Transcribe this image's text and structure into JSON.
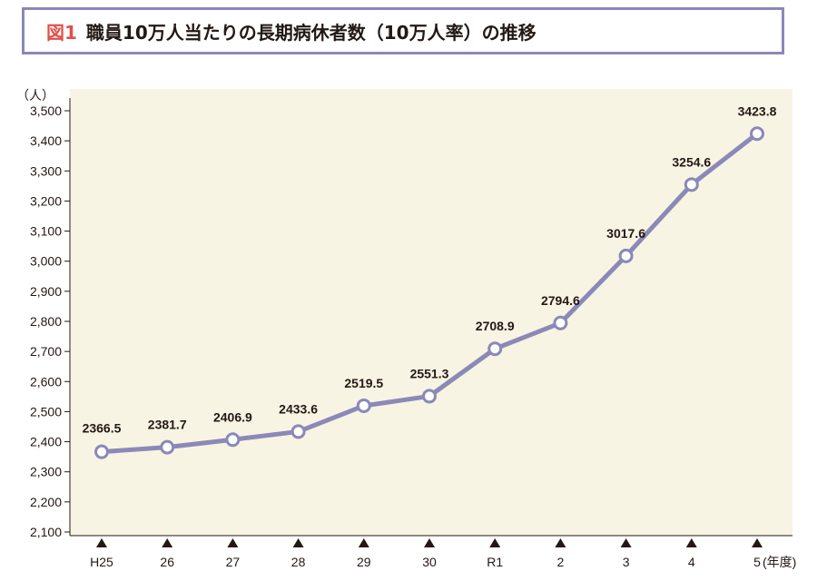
{
  "header": {
    "figure_number": "図1",
    "title": "職員10万人当たりの長期病休者数（10万人率）の推移"
  },
  "chart_data": {
    "type": "line",
    "title": "職員10万人当たりの長期病休者数（10万人率）の推移",
    "ylabel": "（人）",
    "xlabel": "(年度)",
    "categories": [
      "H25",
      "26",
      "27",
      "28",
      "29",
      "30",
      "R1",
      "2",
      "3",
      "4",
      "5"
    ],
    "series": [
      {
        "values": [
          2366.5,
          2381.7,
          2406.9,
          2433.6,
          2519.5,
          2551.3,
          2708.9,
          2794.6,
          3017.6,
          3254.6,
          3423.8
        ],
        "labels": [
          "2366.5",
          "2381.7",
          "2406.9",
          "2433.6",
          "2519.5",
          "2551.3",
          "2708.9",
          "2794.6",
          "3017.6",
          "3254.6",
          "3423.8"
        ]
      }
    ],
    "ylim": [
      2100,
      3500
    ],
    "yticks": [
      2100,
      2200,
      2300,
      2400,
      2500,
      2600,
      2700,
      2800,
      2900,
      3000,
      3100,
      3200,
      3300,
      3400,
      3500
    ],
    "ytick_labels": [
      "2,100",
      "2,200",
      "2,300",
      "2,400",
      "2,500",
      "2,600",
      "2,700",
      "2,800",
      "2,900",
      "3,000",
      "3,100",
      "3,200",
      "3,300",
      "3,400",
      "3,500"
    ],
    "grid": false,
    "colors": {
      "line": "#8a89b8",
      "plot_background": "#f8f4e3",
      "marker_fill": "#ffffff",
      "title_border": "#8c87b8",
      "figure_number": "#e0504a"
    }
  }
}
